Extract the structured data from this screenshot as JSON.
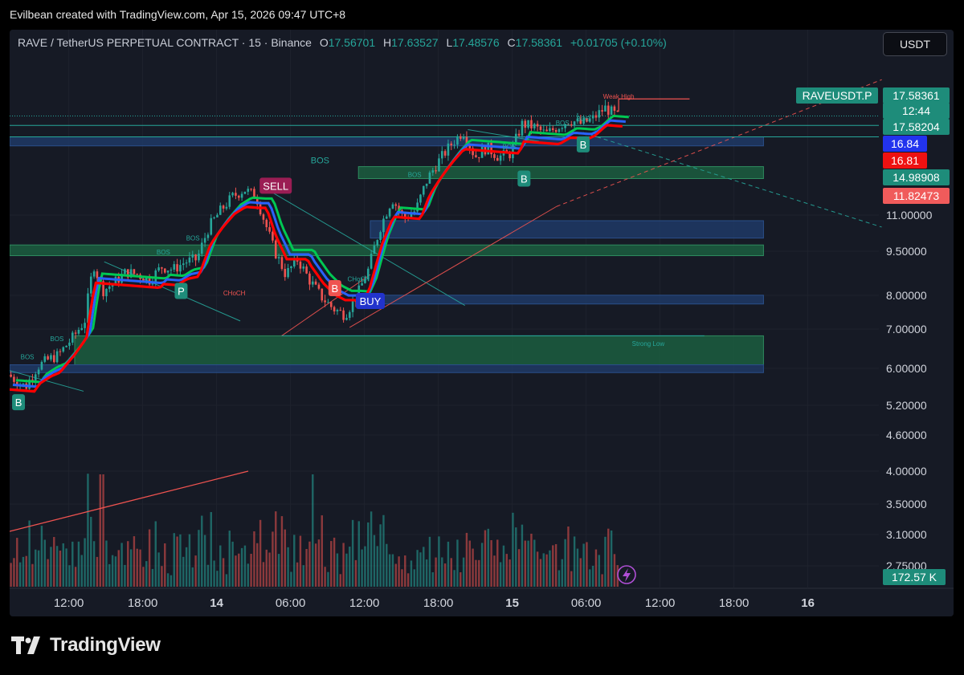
{
  "header": {
    "credit": "Evilbean created with TradingView.com, Apr 15, 2026 09:47 UTC+8"
  },
  "legend": {
    "symbol": "RAVE / TetherUS PERPETUAL CONTRACT · 15 · Binance",
    "o_label": "O",
    "o": "17.56701",
    "h_label": "H",
    "h": "17.63527",
    "l_label": "L",
    "l": "17.48576",
    "c_label": "C",
    "c": "17.58361",
    "change": "+0.01705 (+0.10%)"
  },
  "currency_button": "USDT",
  "brand": {
    "name": "TradingView",
    "logo_icon": "tradingview-logo-icon"
  },
  "colors": {
    "bg": "#161a25",
    "up": "#26a69a",
    "down": "#ef5350",
    "ob_green": "#1b5e3f",
    "ob_blue": "#1e3a66",
    "supertrend_red": "#ff0000",
    "supertrend_blue": "#2962ff"
  },
  "chart_data": {
    "type": "candlestick",
    "interval": "15",
    "scale": "log",
    "y_ticks": [
      "5.20000",
      "4.60000",
      "4.00000",
      "3.50000",
      "3.10000",
      "2.75000"
    ],
    "y_ticks_upper": [
      "11.00000",
      "9.50000",
      "8.00000",
      "7.00000",
      "6.00000"
    ],
    "x_ticks": [
      {
        "label": "12:00",
        "day": 13.5,
        "bold": false
      },
      {
        "label": "18:00",
        "day": 13.75,
        "bold": false
      },
      {
        "label": "14",
        "day": 14.0,
        "bold": true
      },
      {
        "label": "06:00",
        "day": 14.25,
        "bold": false
      },
      {
        "label": "12:00",
        "day": 14.5,
        "bold": false
      },
      {
        "label": "18:00",
        "day": 14.75,
        "bold": false
      },
      {
        "label": "15",
        "day": 15.0,
        "bold": true
      },
      {
        "label": "06:00",
        "day": 15.25,
        "bold": false
      },
      {
        "label": "12:00",
        "day": 15.5,
        "bold": false
      },
      {
        "label": "18:00",
        "day": 15.75,
        "bold": false
      },
      {
        "label": "16",
        "day": 16.0,
        "bold": true
      }
    ],
    "price_keypoints": [
      [
        13.3,
        5.9
      ],
      [
        13.36,
        5.6
      ],
      [
        13.4,
        6.1
      ],
      [
        13.44,
        6.3
      ],
      [
        13.47,
        6.4
      ],
      [
        13.52,
        6.9
      ],
      [
        13.56,
        7.4
      ],
      [
        13.59,
        9.4
      ],
      [
        13.62,
        8.4
      ],
      [
        13.66,
        8.7
      ],
      [
        13.7,
        9.1
      ],
      [
        13.74,
        9.0
      ],
      [
        13.78,
        8.8
      ],
      [
        13.82,
        9.3
      ],
      [
        13.86,
        9.2
      ],
      [
        13.9,
        9.5
      ],
      [
        13.94,
        9.6
      ],
      [
        13.98,
        11.0
      ],
      [
        14.02,
        11.8
      ],
      [
        14.06,
        12.5
      ],
      [
        14.1,
        12.9
      ],
      [
        14.14,
        12.5
      ],
      [
        14.17,
        11.2
      ],
      [
        14.2,
        10.0
      ],
      [
        14.24,
        9.0
      ],
      [
        14.28,
        9.6
      ],
      [
        14.32,
        8.8
      ],
      [
        14.36,
        8.2
      ],
      [
        14.4,
        7.8
      ],
      [
        14.44,
        7.6
      ],
      [
        14.48,
        8.2
      ],
      [
        14.52,
        9.2
      ],
      [
        14.56,
        11.0
      ],
      [
        14.6,
        12.4
      ],
      [
        14.64,
        11.4
      ],
      [
        14.68,
        11.8
      ],
      [
        14.72,
        13.5
      ],
      [
        14.76,
        14.6
      ],
      [
        14.8,
        15.6
      ],
      [
        14.84,
        16.5
      ],
      [
        14.88,
        14.8
      ],
      [
        14.92,
        15.4
      ],
      [
        14.96,
        14.8
      ],
      [
        15.0,
        15.0
      ],
      [
        15.04,
        17.0
      ],
      [
        15.08,
        16.8
      ],
      [
        15.12,
        16.3
      ],
      [
        15.16,
        16.8
      ],
      [
        15.2,
        17.3
      ],
      [
        15.24,
        17.0
      ],
      [
        15.28,
        17.4
      ],
      [
        15.32,
        18.2
      ],
      [
        15.36,
        17.6
      ]
    ],
    "last_price": "17.58361",
    "price_labels": [
      {
        "text": "RAVEUSDT.P",
        "price": 17.58361,
        "kind": "symbol-tag"
      },
      {
        "text": "17.58361",
        "price": 17.58361,
        "kind": "last"
      },
      {
        "text": "12:44",
        "price": 17.2,
        "kind": "countdown"
      },
      {
        "text": "17.58204",
        "price": 16.9,
        "kind": "line"
      },
      {
        "text": "16.84",
        "price": 16.1,
        "kind": "blue"
      },
      {
        "text": "16.81",
        "price": 15.4,
        "kind": "red"
      },
      {
        "text": "14.98908",
        "price": 14.7,
        "kind": "line"
      },
      {
        "text": "11.82473",
        "price": 13.6,
        "kind": "red-light"
      }
    ],
    "annotations": [
      {
        "text": "Weak High",
        "day": 15.36,
        "price": 18.9,
        "color": "#ef5350"
      },
      {
        "text": "Strong Low",
        "day": 15.46,
        "price": 6.66,
        "color": "#26a69a"
      },
      {
        "text": "BOS",
        "day": 14.35,
        "price": 14.4,
        "color": "#26a69a",
        "size": 11
      },
      {
        "text": "BOS",
        "day": 13.36,
        "price": 6.3,
        "color": "#26a69a"
      },
      {
        "text": "BOS",
        "day": 13.46,
        "price": 6.8,
        "color": "#26a69a"
      },
      {
        "text": "BOS",
        "day": 13.82,
        "price": 9.8,
        "color": "#26a69a"
      },
      {
        "text": "BOS",
        "day": 13.92,
        "price": 10.4,
        "color": "#26a69a"
      },
      {
        "text": "BOS",
        "day": 14.67,
        "price": 13.6,
        "color": "#26a69a"
      },
      {
        "text": "BOS",
        "day": 14.99,
        "price": 15.3,
        "color": "#26a69a"
      },
      {
        "text": "BOS",
        "day": 15.17,
        "price": 16.9,
        "color": "#26a69a"
      },
      {
        "text": "BOS",
        "day": 15.24,
        "price": 17.2,
        "color": "#26a69a"
      },
      {
        "text": "CHoCH",
        "day": 14.06,
        "price": 8.25,
        "color": "#ef5350"
      },
      {
        "text": "CHoCH",
        "day": 14.48,
        "price": 8.75,
        "color": "#26a69a"
      }
    ],
    "signals": [
      {
        "text": "SELL",
        "day": 14.2,
        "price": 13.1,
        "style": "sell"
      },
      {
        "text": "BUY",
        "day": 14.52,
        "price": 8.05,
        "style": "buy"
      },
      {
        "text": "B",
        "day": 14.4,
        "price": 8.5,
        "style": "buy-red"
      },
      {
        "text": "B",
        "day": 13.33,
        "price": 5.25,
        "style": "teal"
      },
      {
        "text": "P",
        "day": 13.88,
        "price": 8.4,
        "style": "teal"
      },
      {
        "text": "B",
        "day": 15.04,
        "price": 13.5,
        "style": "teal"
      },
      {
        "text": "B",
        "day": 15.24,
        "price": 15.6,
        "style": "teal"
      }
    ],
    "zones": [
      {
        "from": 13.3,
        "to": 15.85,
        "lo": 15.5,
        "hi": 16.1,
        "color": "blue"
      },
      {
        "from": 14.48,
        "to": 15.85,
        "lo": 13.5,
        "hi": 14.2,
        "color": "green"
      },
      {
        "from": 14.52,
        "to": 15.85,
        "lo": 10.5,
        "hi": 11.3,
        "color": "blue"
      },
      {
        "from": 13.3,
        "to": 15.85,
        "lo": 9.75,
        "hi": 10.2,
        "color": "green"
      },
      {
        "from": 14.48,
        "to": 15.85,
        "lo": 7.95,
        "hi": 8.25,
        "color": "blue"
      },
      {
        "from": 13.52,
        "to": 15.85,
        "lo": 6.15,
        "hi": 6.95,
        "color": "green"
      },
      {
        "from": 13.3,
        "to": 15.85,
        "lo": 5.95,
        "hi": 6.15,
        "color": "blue"
      }
    ],
    "volume_last": "172.57 K"
  }
}
